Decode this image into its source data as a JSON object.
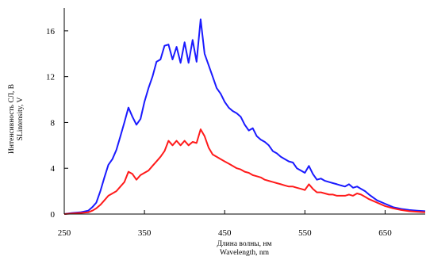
{
  "chart_data": {
    "type": "line",
    "title": "",
    "xlabel_ru": "Длина волны, нм",
    "xlabel_en": "Wavelength, nm",
    "ylabel_ru": "Интенсивность СЛ, В",
    "ylabel_en": "SLintensity, V",
    "xlim": [
      250,
      700
    ],
    "ylim": [
      0,
      18
    ],
    "x_ticks": [
      250,
      350,
      450,
      550,
      650
    ],
    "y_ticks": [
      0,
      4,
      8,
      12,
      16
    ],
    "grid": false,
    "legend": "none",
    "series": [
      {
        "color": "#1a1aff",
        "x": [
          250,
          260,
          270,
          280,
          285,
          290,
          295,
          300,
          305,
          310,
          315,
          320,
          325,
          330,
          335,
          340,
          345,
          350,
          355,
          360,
          365,
          370,
          375,
          380,
          385,
          390,
          395,
          400,
          405,
          410,
          415,
          420,
          425,
          430,
          435,
          440,
          445,
          450,
          455,
          460,
          465,
          470,
          475,
          480,
          485,
          490,
          495,
          500,
          505,
          510,
          515,
          520,
          525,
          530,
          535,
          540,
          545,
          550,
          555,
          560,
          565,
          570,
          575,
          580,
          585,
          590,
          595,
          600,
          605,
          610,
          615,
          620,
          625,
          630,
          640,
          650,
          660,
          670,
          680,
          690,
          700
        ],
        "y": [
          0,
          0.1,
          0.15,
          0.3,
          0.6,
          1.0,
          2.0,
          3.2,
          4.3,
          4.8,
          5.6,
          6.8,
          8.0,
          9.3,
          8.5,
          7.8,
          8.3,
          9.8,
          11.0,
          12.0,
          13.3,
          13.5,
          14.7,
          14.8,
          13.5,
          14.6,
          13.2,
          15.0,
          13.2,
          15.2,
          13.3,
          17.0,
          14.0,
          13.0,
          12.0,
          11.0,
          10.5,
          9.8,
          9.3,
          9.0,
          8.8,
          8.5,
          7.8,
          7.3,
          7.5,
          6.8,
          6.5,
          6.3,
          6.0,
          5.5,
          5.3,
          5.0,
          4.8,
          4.6,
          4.5,
          4.0,
          3.8,
          3.6,
          4.2,
          3.5,
          3.0,
          3.1,
          2.9,
          2.8,
          2.7,
          2.6,
          2.5,
          2.4,
          2.6,
          2.3,
          2.4,
          2.2,
          2.0,
          1.7,
          1.2,
          0.9,
          0.6,
          0.45,
          0.35,
          0.3,
          0.25
        ]
      },
      {
        "color": "#ff1a1a",
        "x": [
          250,
          260,
          270,
          280,
          285,
          290,
          295,
          300,
          305,
          310,
          315,
          320,
          325,
          330,
          335,
          340,
          345,
          350,
          355,
          360,
          365,
          370,
          375,
          380,
          385,
          390,
          395,
          400,
          405,
          410,
          415,
          420,
          425,
          430,
          435,
          440,
          445,
          450,
          455,
          460,
          465,
          470,
          475,
          480,
          485,
          490,
          495,
          500,
          505,
          510,
          515,
          520,
          525,
          530,
          535,
          540,
          545,
          550,
          555,
          560,
          565,
          570,
          575,
          580,
          585,
          590,
          595,
          600,
          605,
          610,
          615,
          620,
          625,
          630,
          640,
          650,
          660,
          670,
          680,
          690,
          700
        ],
        "y": [
          0,
          0.05,
          0.1,
          0.15,
          0.3,
          0.5,
          0.8,
          1.2,
          1.6,
          1.8,
          2.0,
          2.4,
          2.8,
          3.7,
          3.5,
          3.0,
          3.4,
          3.6,
          3.8,
          4.2,
          4.6,
          5.0,
          5.5,
          6.4,
          6.0,
          6.4,
          6.0,
          6.4,
          6.0,
          6.3,
          6.2,
          7.4,
          6.8,
          5.8,
          5.2,
          5.0,
          4.8,
          4.6,
          4.4,
          4.2,
          4.0,
          3.9,
          3.7,
          3.6,
          3.4,
          3.3,
          3.2,
          3.0,
          2.9,
          2.8,
          2.7,
          2.6,
          2.5,
          2.4,
          2.4,
          2.3,
          2.2,
          2.1,
          2.6,
          2.2,
          1.9,
          1.9,
          1.8,
          1.7,
          1.7,
          1.6,
          1.6,
          1.6,
          1.7,
          1.6,
          1.8,
          1.7,
          1.5,
          1.3,
          1.0,
          0.7,
          0.5,
          0.35,
          0.25,
          0.2,
          0.15
        ]
      }
    ]
  }
}
